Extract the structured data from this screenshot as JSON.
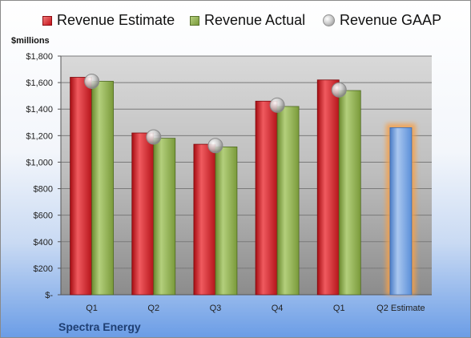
{
  "legend": {
    "estimate": "Revenue Estimate",
    "actual": "Revenue Actual",
    "gaap": "Revenue GAAP"
  },
  "units_label": "$millions",
  "company": "Spectra Energy",
  "chart_data": {
    "type": "bar",
    "categories": [
      "Q1",
      "Q2",
      "Q3",
      "Q4",
      "Q1",
      "Q2 Estimate"
    ],
    "series": [
      {
        "name": "Revenue Estimate",
        "values": [
          1640,
          1220,
          1135,
          1460,
          1620,
          null
        ],
        "color": "#c4121a"
      },
      {
        "name": "Revenue Actual",
        "values": [
          1610,
          1180,
          1115,
          1420,
          1540,
          null
        ],
        "color": "#7a9a3a"
      },
      {
        "name": "Revenue GAAP",
        "values": [
          1610,
          1190,
          1125,
          1430,
          1545,
          null
        ],
        "marker": "sphere"
      }
    ],
    "forecast": {
      "category": "Q2 Estimate",
      "value": 1260,
      "color": "#5b8fd8",
      "glow": "#f5a04a"
    },
    "ylim": [
      0,
      1800
    ],
    "yticks": [
      0,
      200,
      400,
      600,
      800,
      1000,
      1200,
      1400,
      1600,
      1800
    ],
    "ytick_labels": [
      "$-",
      "$200",
      "$400",
      "$600",
      "$800",
      "$1,000",
      "$1,200",
      "$1,400",
      "$1,600",
      "$1,800"
    ],
    "grid": true,
    "legend_position": "top"
  }
}
